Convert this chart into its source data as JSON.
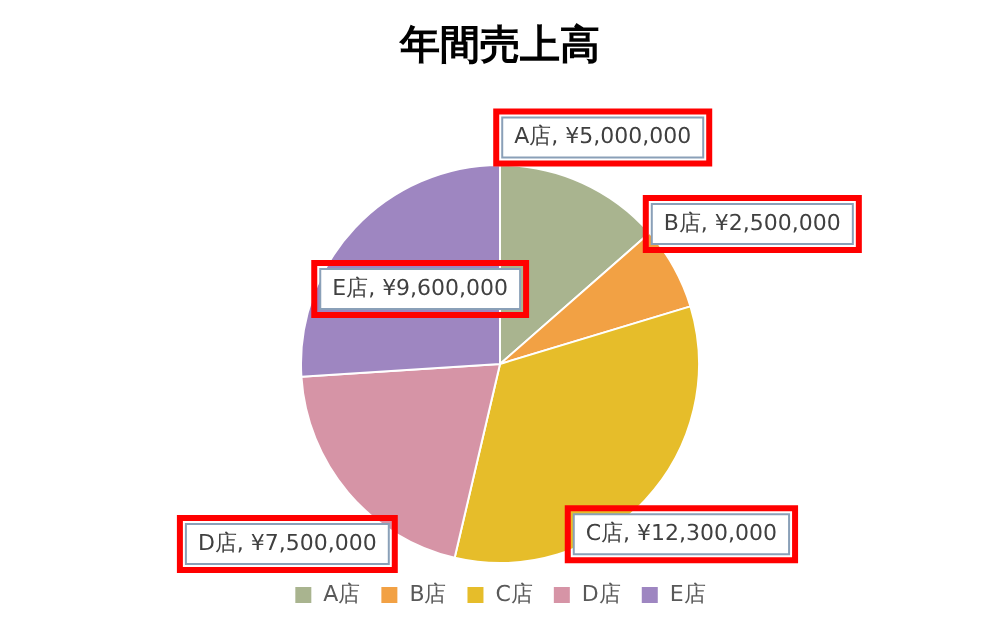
{
  "chart_data": {
    "type": "pie",
    "title": "年間売上高",
    "categories": [
      "A店",
      "B店",
      "C店",
      "D店",
      "E店"
    ],
    "values": [
      5000000,
      2500000,
      12300000,
      7500000,
      9600000
    ],
    "colors": [
      "#a9b48f",
      "#f2a144",
      "#e6bd2a",
      "#d694a6",
      "#9e86c1"
    ],
    "value_labels": [
      "A店, ¥5,000,000",
      "B店, ¥2,500,000",
      "C店, ¥12,300,000",
      "D店, ¥7,500,000",
      "E店, ¥9,600,000"
    ],
    "legend": "bottom"
  }
}
